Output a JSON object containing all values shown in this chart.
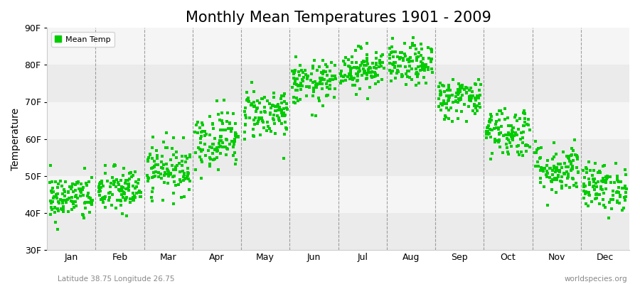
{
  "title": "Monthly Mean Temperatures 1901 - 2009",
  "ylabel": "Temperature",
  "xlabel_bottom_left": "Latitude 38.75 Longitude 26.75",
  "xlabel_bottom_right": "worldspecies.org",
  "legend_label": "Mean Temp",
  "ylim": [
    30,
    90
  ],
  "yticks": [
    30,
    40,
    50,
    60,
    70,
    80,
    90
  ],
  "ytick_labels": [
    "30F",
    "40F",
    "50F",
    "60F",
    "70F",
    "80F",
    "90F"
  ],
  "months": [
    "Jan",
    "Feb",
    "Mar",
    "Apr",
    "May",
    "Jun",
    "Jul",
    "Aug",
    "Sep",
    "Oct",
    "Nov",
    "Dec"
  ],
  "dot_color": "#00cc00",
  "background_color": "#f5f5f5",
  "h_band_colors": [
    "#ebebeb",
    "#f5f5f5"
  ],
  "title_fontsize": 15,
  "label_fontsize": 9,
  "monthly_mean_temps_F": [
    44,
    46,
    52,
    60,
    67,
    75,
    79,
    80,
    71,
    62,
    52,
    47
  ],
  "monthly_std_F": [
    3.2,
    3.2,
    3.5,
    4.0,
    3.5,
    3.0,
    2.8,
    2.8,
    2.8,
    3.5,
    3.5,
    3.2
  ],
  "num_years": 109
}
